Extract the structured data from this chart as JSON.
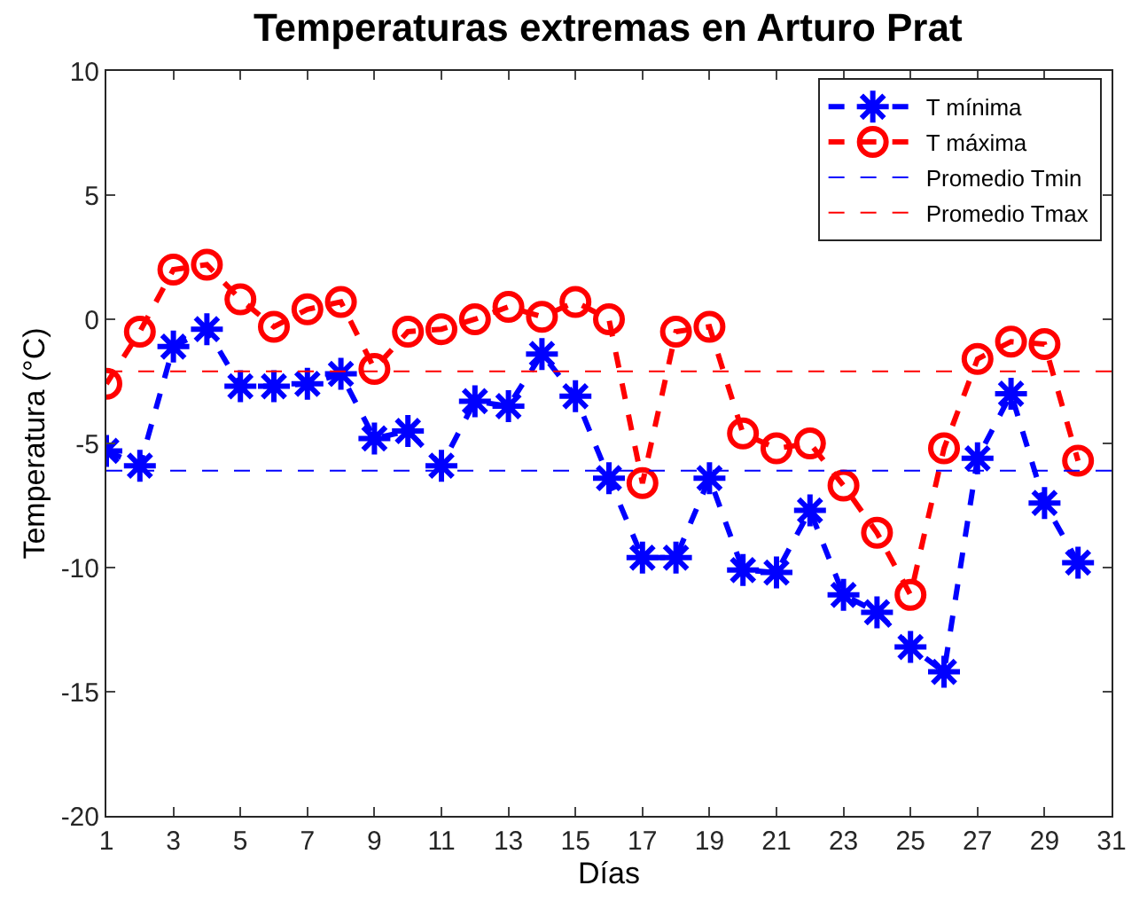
{
  "chart_data": {
    "type": "line",
    "title": "Temperaturas extremas en Arturo Prat",
    "xlabel": "Días",
    "ylabel": "Temperatura (°C)",
    "x": [
      1,
      2,
      3,
      4,
      5,
      6,
      7,
      8,
      9,
      10,
      11,
      12,
      13,
      14,
      15,
      16,
      17,
      18,
      19,
      20,
      21,
      22,
      23,
      24,
      25,
      26,
      27,
      28,
      29,
      30
    ],
    "series": [
      {
        "name": "T mínima",
        "color": "#0000ff",
        "marker": "cross",
        "line_style": "dashed",
        "values": [
          -5.3,
          -5.9,
          -1.1,
          -0.4,
          -2.7,
          -2.7,
          -2.6,
          -2.2,
          -4.8,
          -4.5,
          -5.9,
          -3.3,
          -3.5,
          -1.4,
          -3.1,
          -6.4,
          -9.6,
          -9.6,
          -6.4,
          -10.1,
          -10.2,
          -7.7,
          -11.1,
          -11.8,
          -13.2,
          -14.2,
          -5.6,
          -3.0,
          -7.4,
          -9.8
        ]
      },
      {
        "name": "T máxima",
        "color": "#ff0000",
        "marker": "circle",
        "line_style": "dashed",
        "values": [
          -2.6,
          -0.5,
          2.0,
          2.2,
          0.8,
          -0.3,
          0.4,
          0.7,
          -2.0,
          -0.5,
          -0.4,
          0.0,
          0.5,
          0.1,
          0.7,
          0.0,
          -6.6,
          -0.5,
          -0.3,
          -4.6,
          -5.2,
          -5.0,
          -6.7,
          -8.6,
          -11.1,
          -5.2,
          -1.6,
          -0.9,
          -1.0,
          -5.7
        ]
      }
    ],
    "ref_lines": [
      {
        "axis": "y",
        "value": -6.1,
        "label": "Promedio Tmin",
        "color": "#0000ff",
        "line_style": "dashed"
      },
      {
        "axis": "y",
        "value": -2.1,
        "label": "Promedio Tmax",
        "color": "#ff0000",
        "line_style": "dashed"
      }
    ],
    "xlim": [
      1,
      31
    ],
    "xticks": [
      1,
      3,
      5,
      7,
      9,
      11,
      13,
      15,
      17,
      19,
      21,
      23,
      25,
      27,
      29,
      31
    ],
    "ylim": [
      -20,
      10
    ],
    "yticks": [
      -20,
      -15,
      -10,
      -5,
      0,
      5,
      10
    ],
    "grid": false,
    "legend": "top right"
  }
}
